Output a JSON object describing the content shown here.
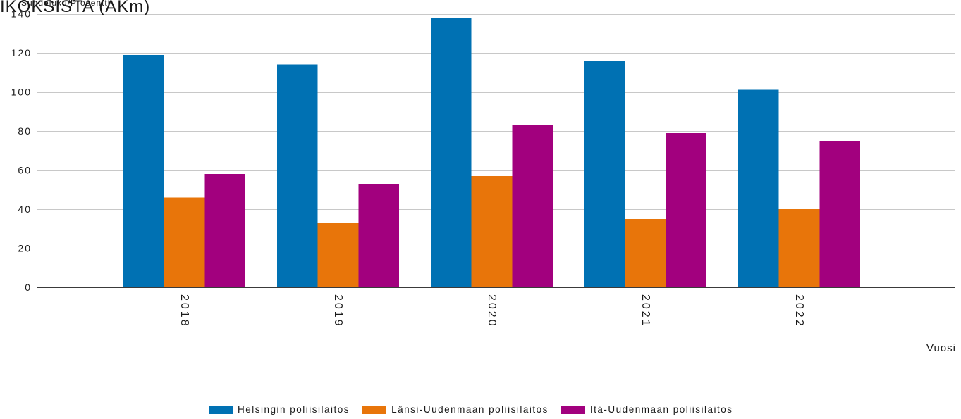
{
  "chart_data": {
    "type": "bar",
    "ylabel": "IKOKSISTA (AKm)",
    "ylabel_secondary": "Suhdeluku/Prosentti",
    "xlabel": "Vuosi",
    "categories": [
      "2018",
      "2019",
      "2020",
      "2021",
      "2022"
    ],
    "ylim": [
      0,
      140
    ],
    "yticks": [
      0,
      20,
      40,
      60,
      80,
      100,
      120,
      140
    ],
    "grid": true,
    "legend": "bottom-center",
    "series": [
      {
        "name": "Helsingin poliisilaitos",
        "values": [
          119,
          114,
          138,
          116,
          101
        ],
        "color": "#0071b3"
      },
      {
        "name": "Länsi-Uudenmaan poliisilaitos",
        "values": [
          46,
          33,
          57,
          35,
          40
        ],
        "color": "#e8750a"
      },
      {
        "name": "Itä-Uudenmaan poliisilaitos",
        "values": [
          58,
          53,
          83,
          79,
          75
        ],
        "color": "#a2007e"
      }
    ]
  }
}
